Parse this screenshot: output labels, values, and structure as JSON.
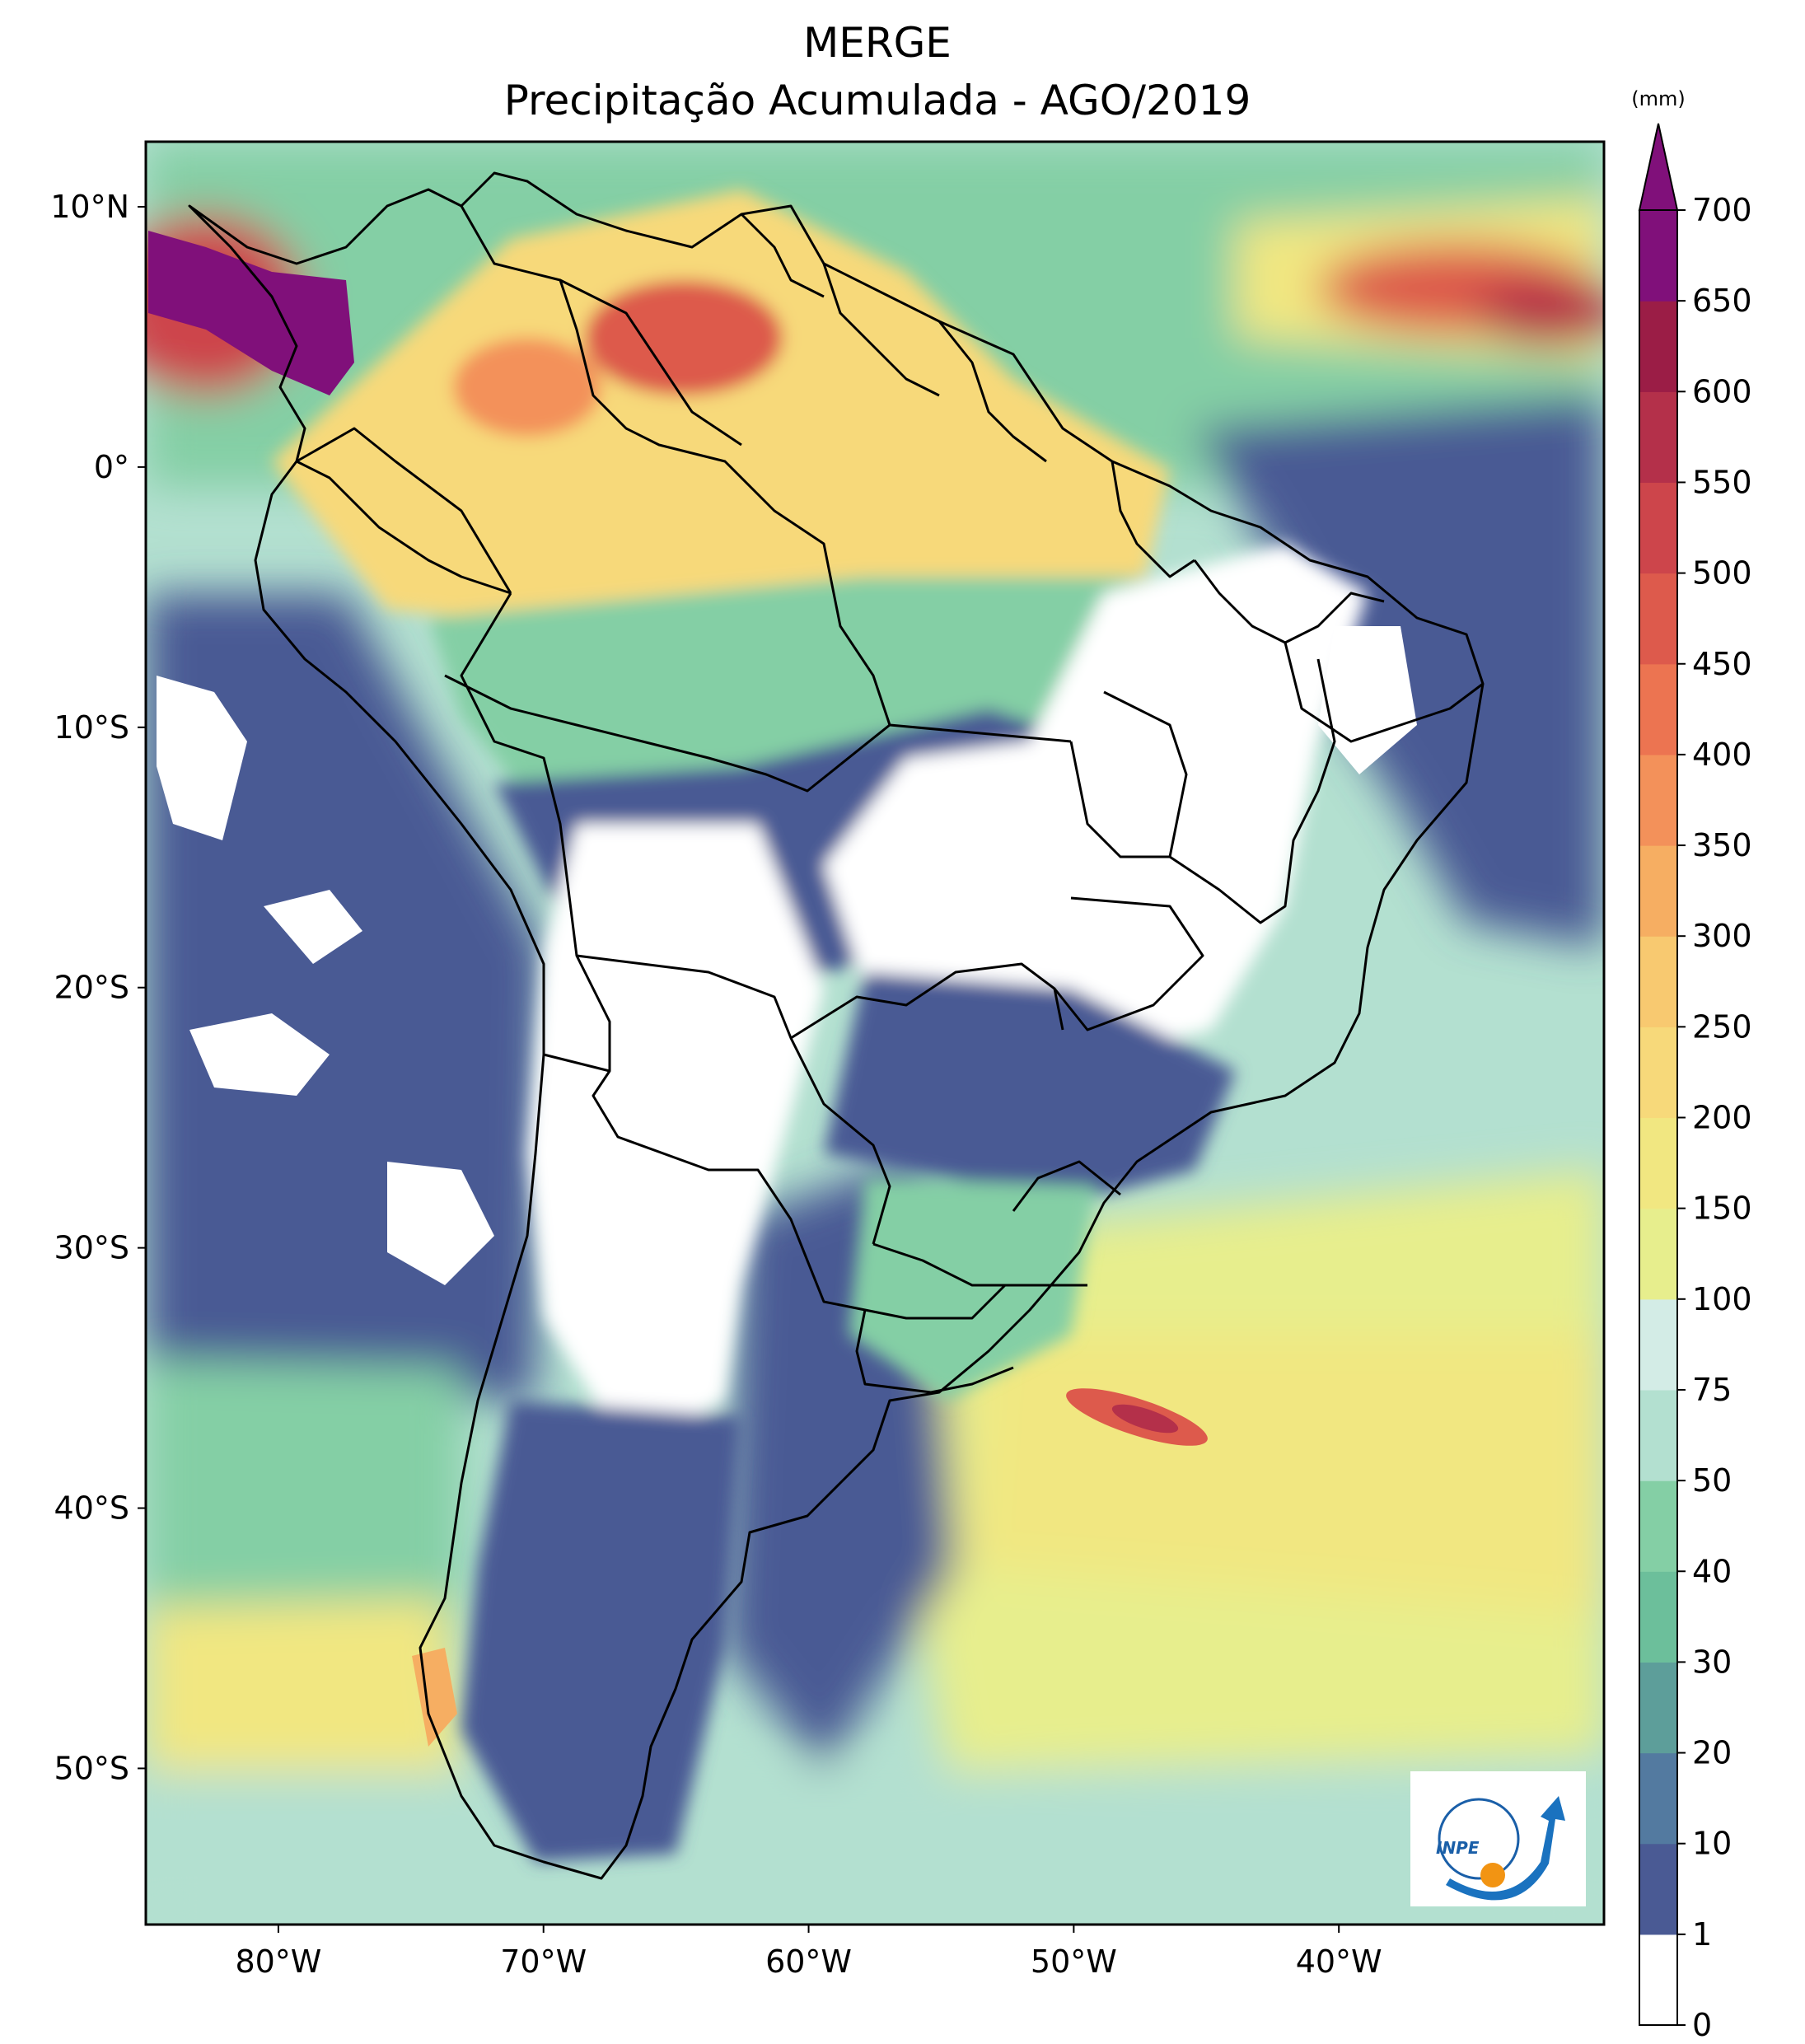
{
  "title": {
    "line1": "MERGE",
    "line2": "Precipitação Acumulada - AGO/2019"
  },
  "map": {
    "lat_range": [
      -56,
      12.5
    ],
    "lon_range": [
      -85,
      -30
    ],
    "lat_ticks": [
      {
        "label": "10°N",
        "lat": 10
      },
      {
        "label": "0°",
        "lat": 0
      },
      {
        "label": "10°S",
        "lat": -10
      },
      {
        "label": "20°S",
        "lat": -20
      },
      {
        "label": "30°S",
        "lat": -30
      },
      {
        "label": "40°S",
        "lat": -40
      },
      {
        "label": "50°S",
        "lat": -50
      }
    ],
    "lon_ticks": [
      {
        "label": "80°W",
        "lon": -80
      },
      {
        "label": "70°W",
        "lon": -70
      },
      {
        "label": "60°W",
        "lon": -60
      },
      {
        "label": "50°W",
        "lon": -50
      },
      {
        "label": "40°W",
        "lon": -40
      }
    ]
  },
  "colorbar": {
    "unit": "(mm)",
    "levels": [
      0,
      1,
      10,
      20,
      30,
      40,
      50,
      75,
      100,
      150,
      200,
      250,
      300,
      350,
      400,
      450,
      500,
      550,
      600,
      650,
      700
    ],
    "colors": [
      "#ffffff",
      "#4a5a94",
      "#537aa0",
      "#5d9e9a",
      "#6cbf9b",
      "#84cfa5",
      "#b3e0d0",
      "#d3ece6",
      "#e7ee8d",
      "#f1e781",
      "#f7d97a",
      "#f8c970",
      "#f6ae62",
      "#f3915a",
      "#ec7451",
      "#dd5a4c",
      "#cd454b",
      "#b4304a",
      "#9b1d46",
      "#80107a"
    ],
    "extend_color": "#80107a"
  },
  "logo": {
    "text": "INPE"
  },
  "colors": {
    "ocean_pale": "#d3ece6",
    "ocean_light": "#b3e0d0",
    "dry": "#ffffff",
    "low": "#4a5a94",
    "border": "#000000"
  }
}
